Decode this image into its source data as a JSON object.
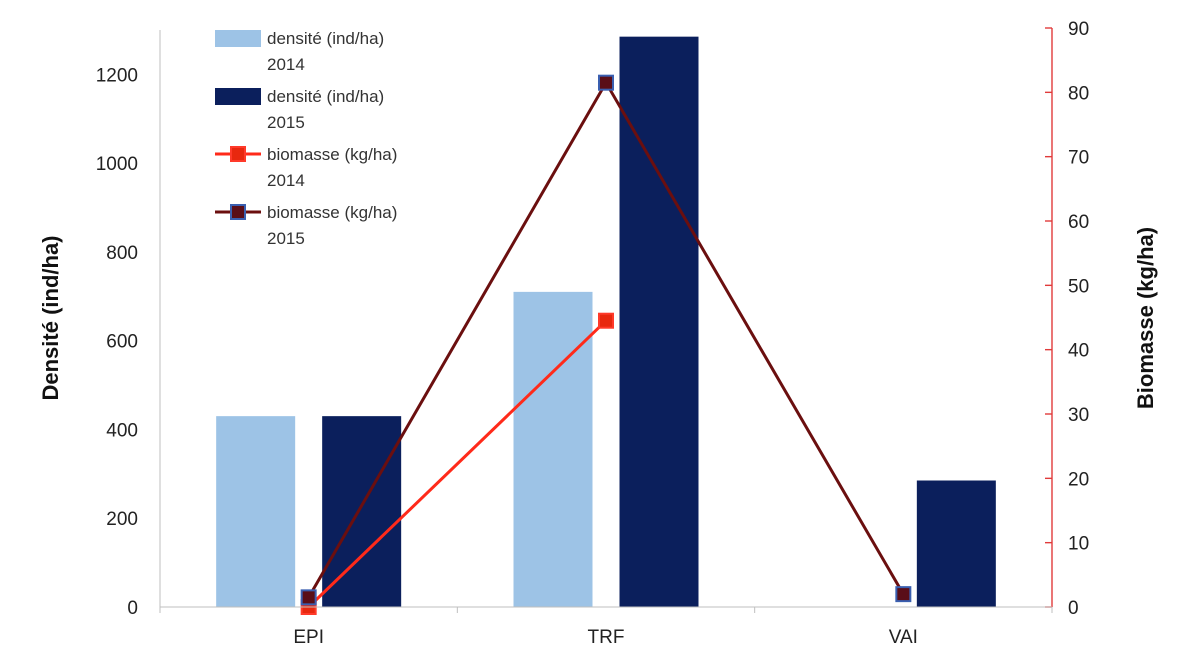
{
  "chart_data": {
    "type": "bar",
    "categories": [
      "EPI",
      "TRF",
      "VAI"
    ],
    "series": [
      {
        "name": "densité (ind/ha) 2014",
        "kind": "bar",
        "axis": "left",
        "color": "#9DC3E6",
        "values": [
          430,
          710,
          0
        ]
      },
      {
        "name": "densité (ind/ha) 2015",
        "kind": "bar",
        "axis": "left",
        "color": "#0B1F5C",
        "values": [
          430,
          1285,
          285
        ]
      },
      {
        "name": "biomasse (kg/ha) 2014",
        "kind": "line",
        "axis": "right",
        "color": "#FF2A1A",
        "marker_color": "#E8280F",
        "values": [
          0,
          44.5,
          null
        ]
      },
      {
        "name": "biomasse (kg/ha) 2015",
        "kind": "line",
        "axis": "right",
        "color": "#6B0F0F",
        "marker_color": "#5A0E18",
        "values": [
          1.5,
          81.5,
          2
        ]
      }
    ],
    "legend": {
      "placement": "top-left",
      "entries": [
        [
          "densité (ind/ha)",
          "2014"
        ],
        [
          "densité (ind/ha)",
          "2015"
        ],
        [
          "biomasse (kg/ha)",
          "2014"
        ],
        [
          "biomasse (kg/ha)",
          "2015"
        ]
      ]
    },
    "y_left": {
      "label": "Densité (ind/ha)",
      "ylim": [
        0,
        1300
      ],
      "ticks": [
        0,
        200,
        400,
        600,
        800,
        1000,
        1200
      ]
    },
    "y_right": {
      "label": "Biomasse (kg/ha)",
      "ylim": [
        0,
        90
      ],
      "ticks": [
        0,
        10,
        20,
        30,
        40,
        50,
        60,
        70,
        80,
        90
      ],
      "color": "#E03B3B"
    },
    "grid": false
  }
}
